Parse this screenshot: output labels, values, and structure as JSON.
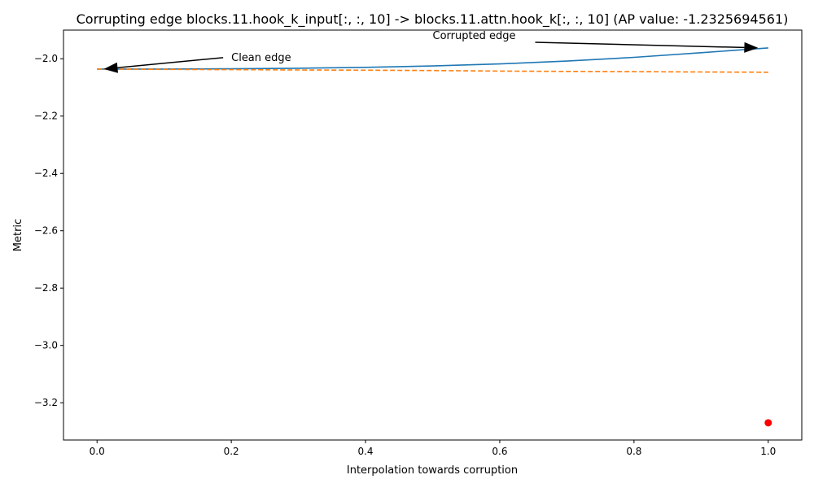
{
  "chart_data": {
    "type": "line",
    "title": "Corrupting edge blocks.11.hook_k_input[:, :, 10] -> blocks.11.attn.hook_k[:, :, 10] (AP value: -1.2325694561)",
    "xlabel": "Interpolation towards corruption",
    "ylabel": "Metric",
    "xlim": [
      -0.05,
      1.05
    ],
    "ylim": [
      -3.33,
      -1.9
    ],
    "xticks": [
      0.0,
      0.2,
      0.4,
      0.6,
      0.8,
      1.0
    ],
    "xtick_labels": [
      "0.0",
      "0.2",
      "0.4",
      "0.6",
      "0.8",
      "1.0"
    ],
    "yticks": [
      -2.0,
      -2.2,
      -2.4,
      -2.6,
      -2.8,
      -3.0,
      -3.2
    ],
    "ytick_labels": [
      "−2.0",
      "−2.2",
      "−2.4",
      "−2.6",
      "−2.8",
      "−3.0",
      "−3.2"
    ],
    "grid": false,
    "series": [
      {
        "style": "solid",
        "color": "#1f77b4",
        "x": [
          0.0,
          0.1,
          0.2,
          0.3,
          0.4,
          0.5,
          0.6,
          0.7,
          0.8,
          0.9,
          1.0
        ],
        "y": [
          -2.036,
          -2.036,
          -2.035,
          -2.033,
          -2.03,
          -2.025,
          -2.018,
          -2.008,
          -1.995,
          -1.979,
          -1.962
        ]
      },
      {
        "style": "dashed",
        "color": "#ff7f0e",
        "x": [
          0.0,
          0.1,
          0.2,
          0.3,
          0.4,
          0.5,
          0.6,
          0.7,
          0.8,
          0.9,
          1.0
        ],
        "y": [
          -2.036,
          -2.037,
          -2.038,
          -2.039,
          -2.04,
          -2.041,
          -2.043,
          -2.044,
          -2.045,
          -2.046,
          -2.047
        ]
      }
    ],
    "points": [
      {
        "x": 1.0,
        "y": -3.27,
        "color": "#ff0000"
      }
    ],
    "annotations": [
      {
        "text": "Clean edge",
        "text_x": 0.2,
        "text_y": -1.996,
        "arrow_x": 0.01,
        "arrow_y": -2.036
      },
      {
        "text": "Corrupted edge",
        "text_x": 0.5,
        "text_y": -1.92,
        "arrow_x": 0.985,
        "arrow_y": -1.962
      }
    ]
  }
}
